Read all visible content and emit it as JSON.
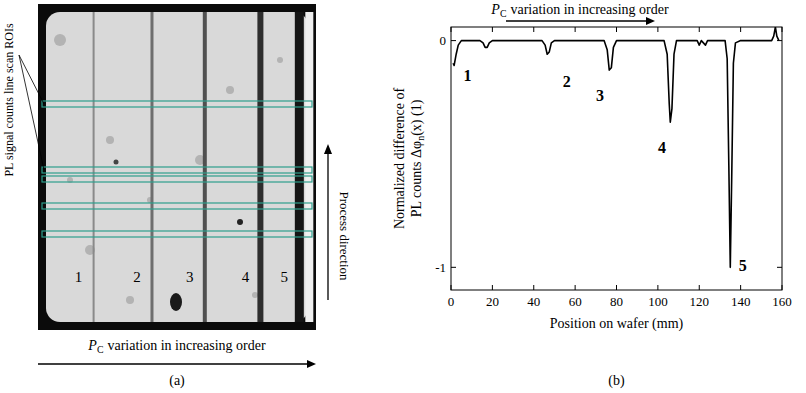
{
  "image_panel": {
    "panel_label": "(a)",
    "roi_label": "PL signal counts line scan ROIs",
    "direction_label": "Process direction",
    "variation_label": {
      "symbol": "P",
      "subscript": "C",
      "text": "variation in increasing order"
    },
    "stripe_labels": [
      "1",
      "2",
      "3",
      "4",
      "5"
    ]
  },
  "chart_data": {
    "type": "line",
    "panel_label": "(b)",
    "title": {
      "symbol": "P",
      "subscript": "C",
      "text": "variation in increasing order"
    },
    "x_label": "Position on wafer (mm)",
    "y_label": {
      "line1": "Normalized difference of",
      "line2": "PL counts Δφ",
      "subscript": "n",
      "line2_end": "(x) (1)"
    },
    "x": [
      1,
      1.5,
      2.5,
      3.5,
      5,
      10,
      14,
      15.5,
      16.5,
      17.5,
      18.5,
      20,
      30,
      40,
      44,
      45.5,
      46.5,
      47.5,
      48.5,
      50,
      60,
      70,
      74,
      75.5,
      76.5,
      77.5,
      78.5,
      80,
      90,
      100,
      103,
      104.5,
      105.5,
      106,
      106.8,
      107.8,
      109,
      115,
      119,
      120,
      121,
      123,
      124,
      130,
      132.5,
      133.5,
      134.3,
      135,
      135.7,
      136.5,
      137.5,
      140,
      150,
      155,
      156,
      156.8,
      157.5,
      158.5
    ],
    "values": [
      -0.1,
      -0.11,
      -0.06,
      -0.02,
      0,
      0,
      0,
      -0.01,
      -0.03,
      -0.03,
      -0.01,
      0,
      0,
      0,
      0,
      -0.02,
      -0.06,
      -0.05,
      -0.01,
      0,
      0,
      0,
      0,
      -0.04,
      -0.13,
      -0.12,
      -0.03,
      0,
      0,
      0,
      0,
      -0.06,
      -0.28,
      -0.36,
      -0.3,
      -0.06,
      0,
      0,
      0,
      -0.02,
      0,
      -0.02,
      0,
      0,
      0,
      -0.08,
      -0.55,
      -1.0,
      -0.6,
      -0.1,
      -0.01,
      0,
      0,
      0,
      0.02,
      0.06,
      0.02,
      0
    ],
    "color": "#000000",
    "xlim": [
      0,
      160
    ],
    "ylim": [
      -1.1,
      0.06
    ],
    "xticks": [
      0,
      20,
      40,
      60,
      80,
      100,
      120,
      140,
      160
    ],
    "yticks": [
      -1,
      0
    ],
    "annotations": [
      {
        "text": "1",
        "x": 8,
        "y": -0.15
      },
      {
        "text": "2",
        "x": 56,
        "y": -0.18
      },
      {
        "text": "3",
        "x": 72,
        "y": -0.24
      },
      {
        "text": "4",
        "x": 102,
        "y": -0.47
      },
      {
        "text": "5",
        "x": 141,
        "y": -0.99
      }
    ]
  }
}
